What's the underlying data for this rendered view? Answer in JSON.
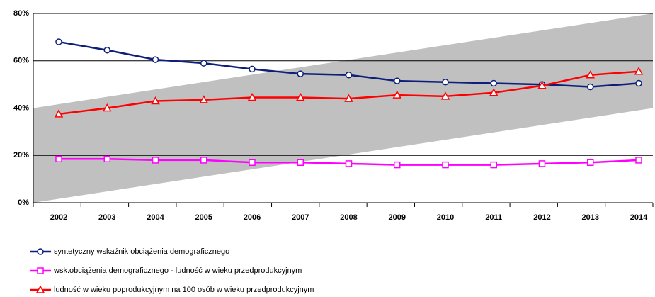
{
  "chart_data": {
    "type": "line",
    "categories": [
      "2002",
      "2003",
      "2004",
      "2005",
      "2006",
      "2007",
      "2008",
      "2009",
      "2010",
      "2011",
      "2012",
      "2013",
      "2014"
    ],
    "series": [
      {
        "name": "syntetyczny wskaźnik obciążenia demograficznego",
        "color": "#0d1f7a",
        "marker": "circle",
        "values": [
          68,
          64.5,
          60.5,
          59,
          56.5,
          54.5,
          54,
          51.5,
          51,
          50.5,
          50,
          49,
          50.5
        ]
      },
      {
        "name": "wsk.obciążenia demograficznego - ludność w wieku przedprodukcyjnym",
        "color": "#ff00ff",
        "marker": "square",
        "values": [
          18.5,
          18.5,
          18,
          18,
          17,
          17,
          16.5,
          16,
          16,
          16,
          16.5,
          17,
          18
        ]
      },
      {
        "name": "ludność w wieku poprodukcyjnym na 100 osób w wieku przedprodukcyjnym",
        "color": "#ff0000",
        "marker": "triangle",
        "values": [
          37.5,
          40,
          43,
          43.5,
          44.5,
          44.5,
          44,
          45.5,
          45,
          46.5,
          49.5,
          54,
          55.5
        ]
      }
    ],
    "ylim": [
      0,
      80
    ],
    "yticks": [
      {
        "value": 0,
        "label": "0%"
      },
      {
        "value": 20,
        "label": "20%"
      },
      {
        "value": 40,
        "label": "40%"
      },
      {
        "value": 60,
        "label": "60%"
      },
      {
        "value": 80,
        "label": "80%"
      }
    ],
    "grid": true,
    "legend": "bottom"
  }
}
